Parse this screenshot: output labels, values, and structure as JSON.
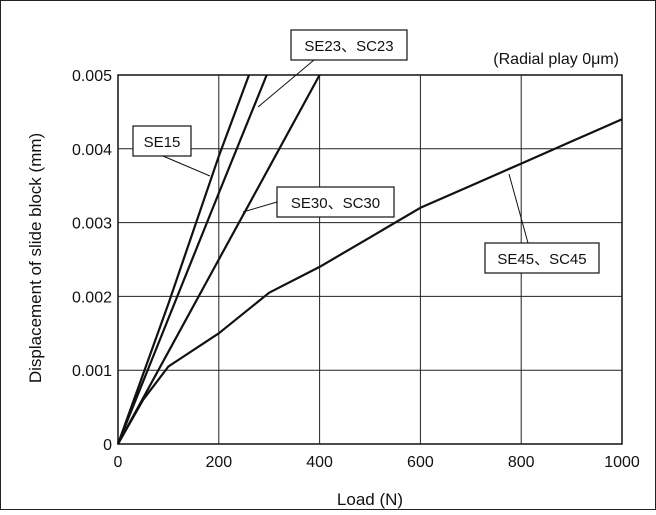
{
  "chart_data": {
    "type": "line",
    "title": "",
    "note": "(Radial play 0μm)",
    "xlabel": "Load (N)",
    "ylabel": "Displacement of slide block (mm)",
    "xlim": [
      0,
      1000
    ],
    "ylim": [
      0,
      0.005
    ],
    "xticks": [
      0,
      200,
      400,
      600,
      800,
      1000
    ],
    "xtick_labels": [
      "0",
      "200",
      "400",
      "600",
      "800",
      "1000"
    ],
    "yticks": [
      0,
      0.001,
      0.002,
      0.003,
      0.004,
      0.005
    ],
    "ytick_labels": [
      "0",
      "0.001",
      "0.002",
      "0.003",
      "0.004",
      "0.005"
    ],
    "grid": true,
    "series": [
      {
        "name": "SE15",
        "x": [
          0,
          100,
          200,
          260
        ],
        "y": [
          0,
          0.0019,
          0.0039,
          0.005
        ]
      },
      {
        "name": "SE23、SC23",
        "x": [
          0,
          100,
          200,
          295
        ],
        "y": [
          0,
          0.0017,
          0.0034,
          0.005
        ]
      },
      {
        "name": "SE30、SC30",
        "x": [
          0,
          100,
          200,
          300,
          400
        ],
        "y": [
          0,
          0.00125,
          0.0025,
          0.00375,
          0.005
        ]
      },
      {
        "name": "SE45、SC45",
        "x": [
          0,
          50,
          100,
          200,
          300,
          400,
          500,
          600,
          700,
          800,
          900,
          1000
        ],
        "y": [
          0,
          0.0006,
          0.00105,
          0.0015,
          0.00205,
          0.0024,
          0.0028,
          0.0032,
          0.0035,
          0.0038,
          0.0041,
          0.0044
        ]
      }
    ]
  }
}
